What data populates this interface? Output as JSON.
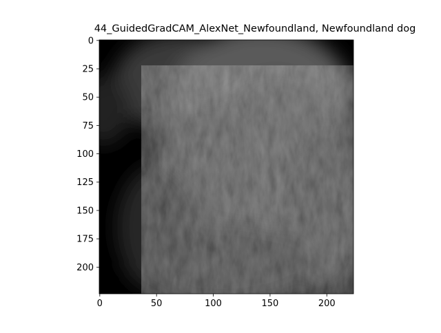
{
  "chart_data": {
    "type": "heatmap",
    "title": "44_GuidedGradCAM_AlexNet_Newfoundland, Newfoundland dog",
    "xlabel": "",
    "ylabel": "",
    "image_size": [
      224,
      224
    ],
    "xlim": [
      -0.5,
      223.5
    ],
    "ylim": [
      223.5,
      -0.5
    ],
    "xticks": [
      0,
      50,
      100,
      150,
      200
    ],
    "yticks": [
      0,
      25,
      50,
      75,
      100,
      125,
      150,
      175,
      200
    ],
    "colormap": "grayscale guided Grad-CAM saliency",
    "background_color": "#000000",
    "grid": false,
    "legend": "none"
  }
}
